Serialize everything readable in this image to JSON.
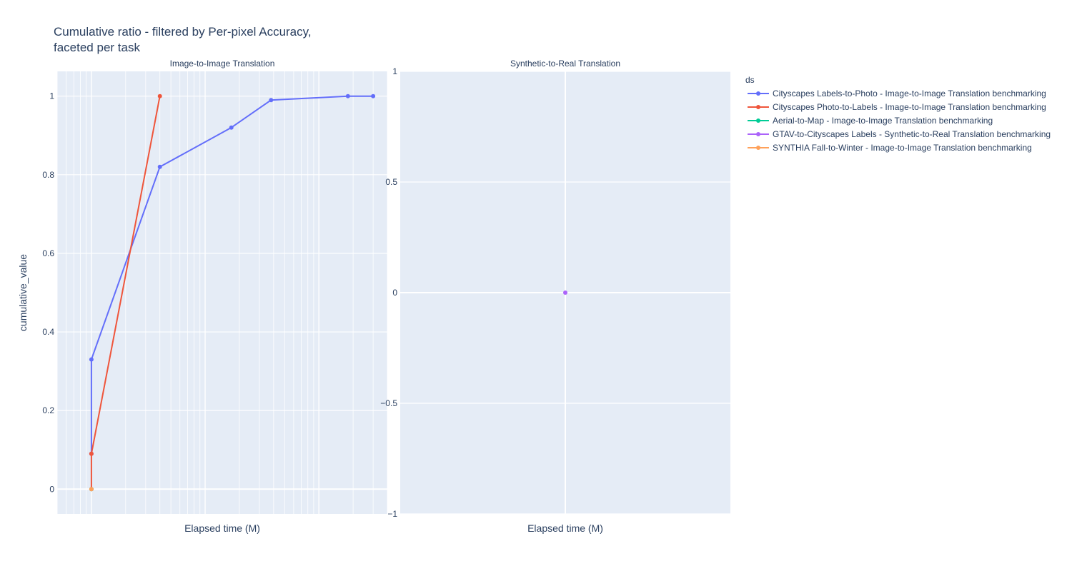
{
  "chart_data": {
    "type": "line",
    "title_lines": [
      "Cumulative ratio - filtered by Per-pixel Accuracy,",
      "faceted per task"
    ],
    "ylabel": "cumulative_value",
    "legend": {
      "title": "ds",
      "placement": "right",
      "entries": [
        {
          "name": "Cityscapes Labels-to-Photo - Image-to-Image Translation benchmarking",
          "color": "#636efa"
        },
        {
          "name": "Cityscapes Photo-to-Labels - Image-to-Image Translation benchmarking",
          "color": "#EF553B"
        },
        {
          "name": "Aerial-to-Map - Image-to-Image Translation benchmarking",
          "color": "#00cc96"
        },
        {
          "name": "GTAV-to-Cityscapes Labels - Synthetic-to-Real Translation benchmarking",
          "color": "#ab63fa"
        },
        {
          "name": "SYNTHIA Fall-to-Winter - Image-to-Image Translation benchmarking",
          "color": "#FFA15A"
        }
      ]
    },
    "facets": [
      {
        "title": "Image-to-Image Translation",
        "xlabel": "Elapsed time (M)",
        "x_scale": "log",
        "x_tick_labels": "none",
        "xlim": [
          0.5,
          400
        ],
        "ylim": [
          -0.063,
          1.063
        ],
        "y_ticks": [
          0,
          0.2,
          0.4,
          0.6,
          0.8,
          1
        ],
        "y_tick_labels": [
          "0",
          "0.2",
          "0.4",
          "0.6",
          "0.8",
          "1"
        ],
        "grid": true,
        "series": [
          {
            "name": "Cityscapes Labels-to-Photo - Image-to-Image Translation benchmarking",
            "color": "#636efa",
            "x": [
              1,
              1,
              4,
              17,
              38,
              180,
              300
            ],
            "y": [
              0.09,
              0.33,
              0.82,
              0.92,
              0.99,
              1.0,
              1.0
            ]
          },
          {
            "name": "Cityscapes Photo-to-Labels - Image-to-Image Translation benchmarking",
            "color": "#EF553B",
            "x": [
              1,
              1,
              4
            ],
            "y": [
              0.0,
              0.09,
              1.0
            ]
          },
          {
            "name": "Aerial-to-Map - Image-to-Image Translation benchmarking",
            "color": "#00cc96",
            "x": [
              1
            ],
            "y": [
              0.0
            ]
          },
          {
            "name": "SYNTHIA Fall-to-Winter - Image-to-Image Translation benchmarking",
            "color": "#FFA15A",
            "x": [
              1
            ],
            "y": [
              0.0
            ]
          }
        ]
      },
      {
        "title": "Synthetic-to-Real Translation",
        "xlabel": "Elapsed time (M)",
        "x_scale": "linear",
        "x_tick_labels": "none",
        "xlim": [
          -1,
          1
        ],
        "ylim": [
          -1,
          1
        ],
        "y_ticks": [
          -1,
          -0.5,
          0,
          0.5,
          1
        ],
        "y_tick_labels": [
          "−1",
          "−0.5",
          "0",
          "0.5",
          "1"
        ],
        "grid": true,
        "series": [
          {
            "name": "GTAV-to-Cityscapes Labels - Synthetic-to-Real Translation benchmarking",
            "color": "#ab63fa",
            "x": [
              0
            ],
            "y": [
              0
            ]
          }
        ]
      }
    ]
  }
}
